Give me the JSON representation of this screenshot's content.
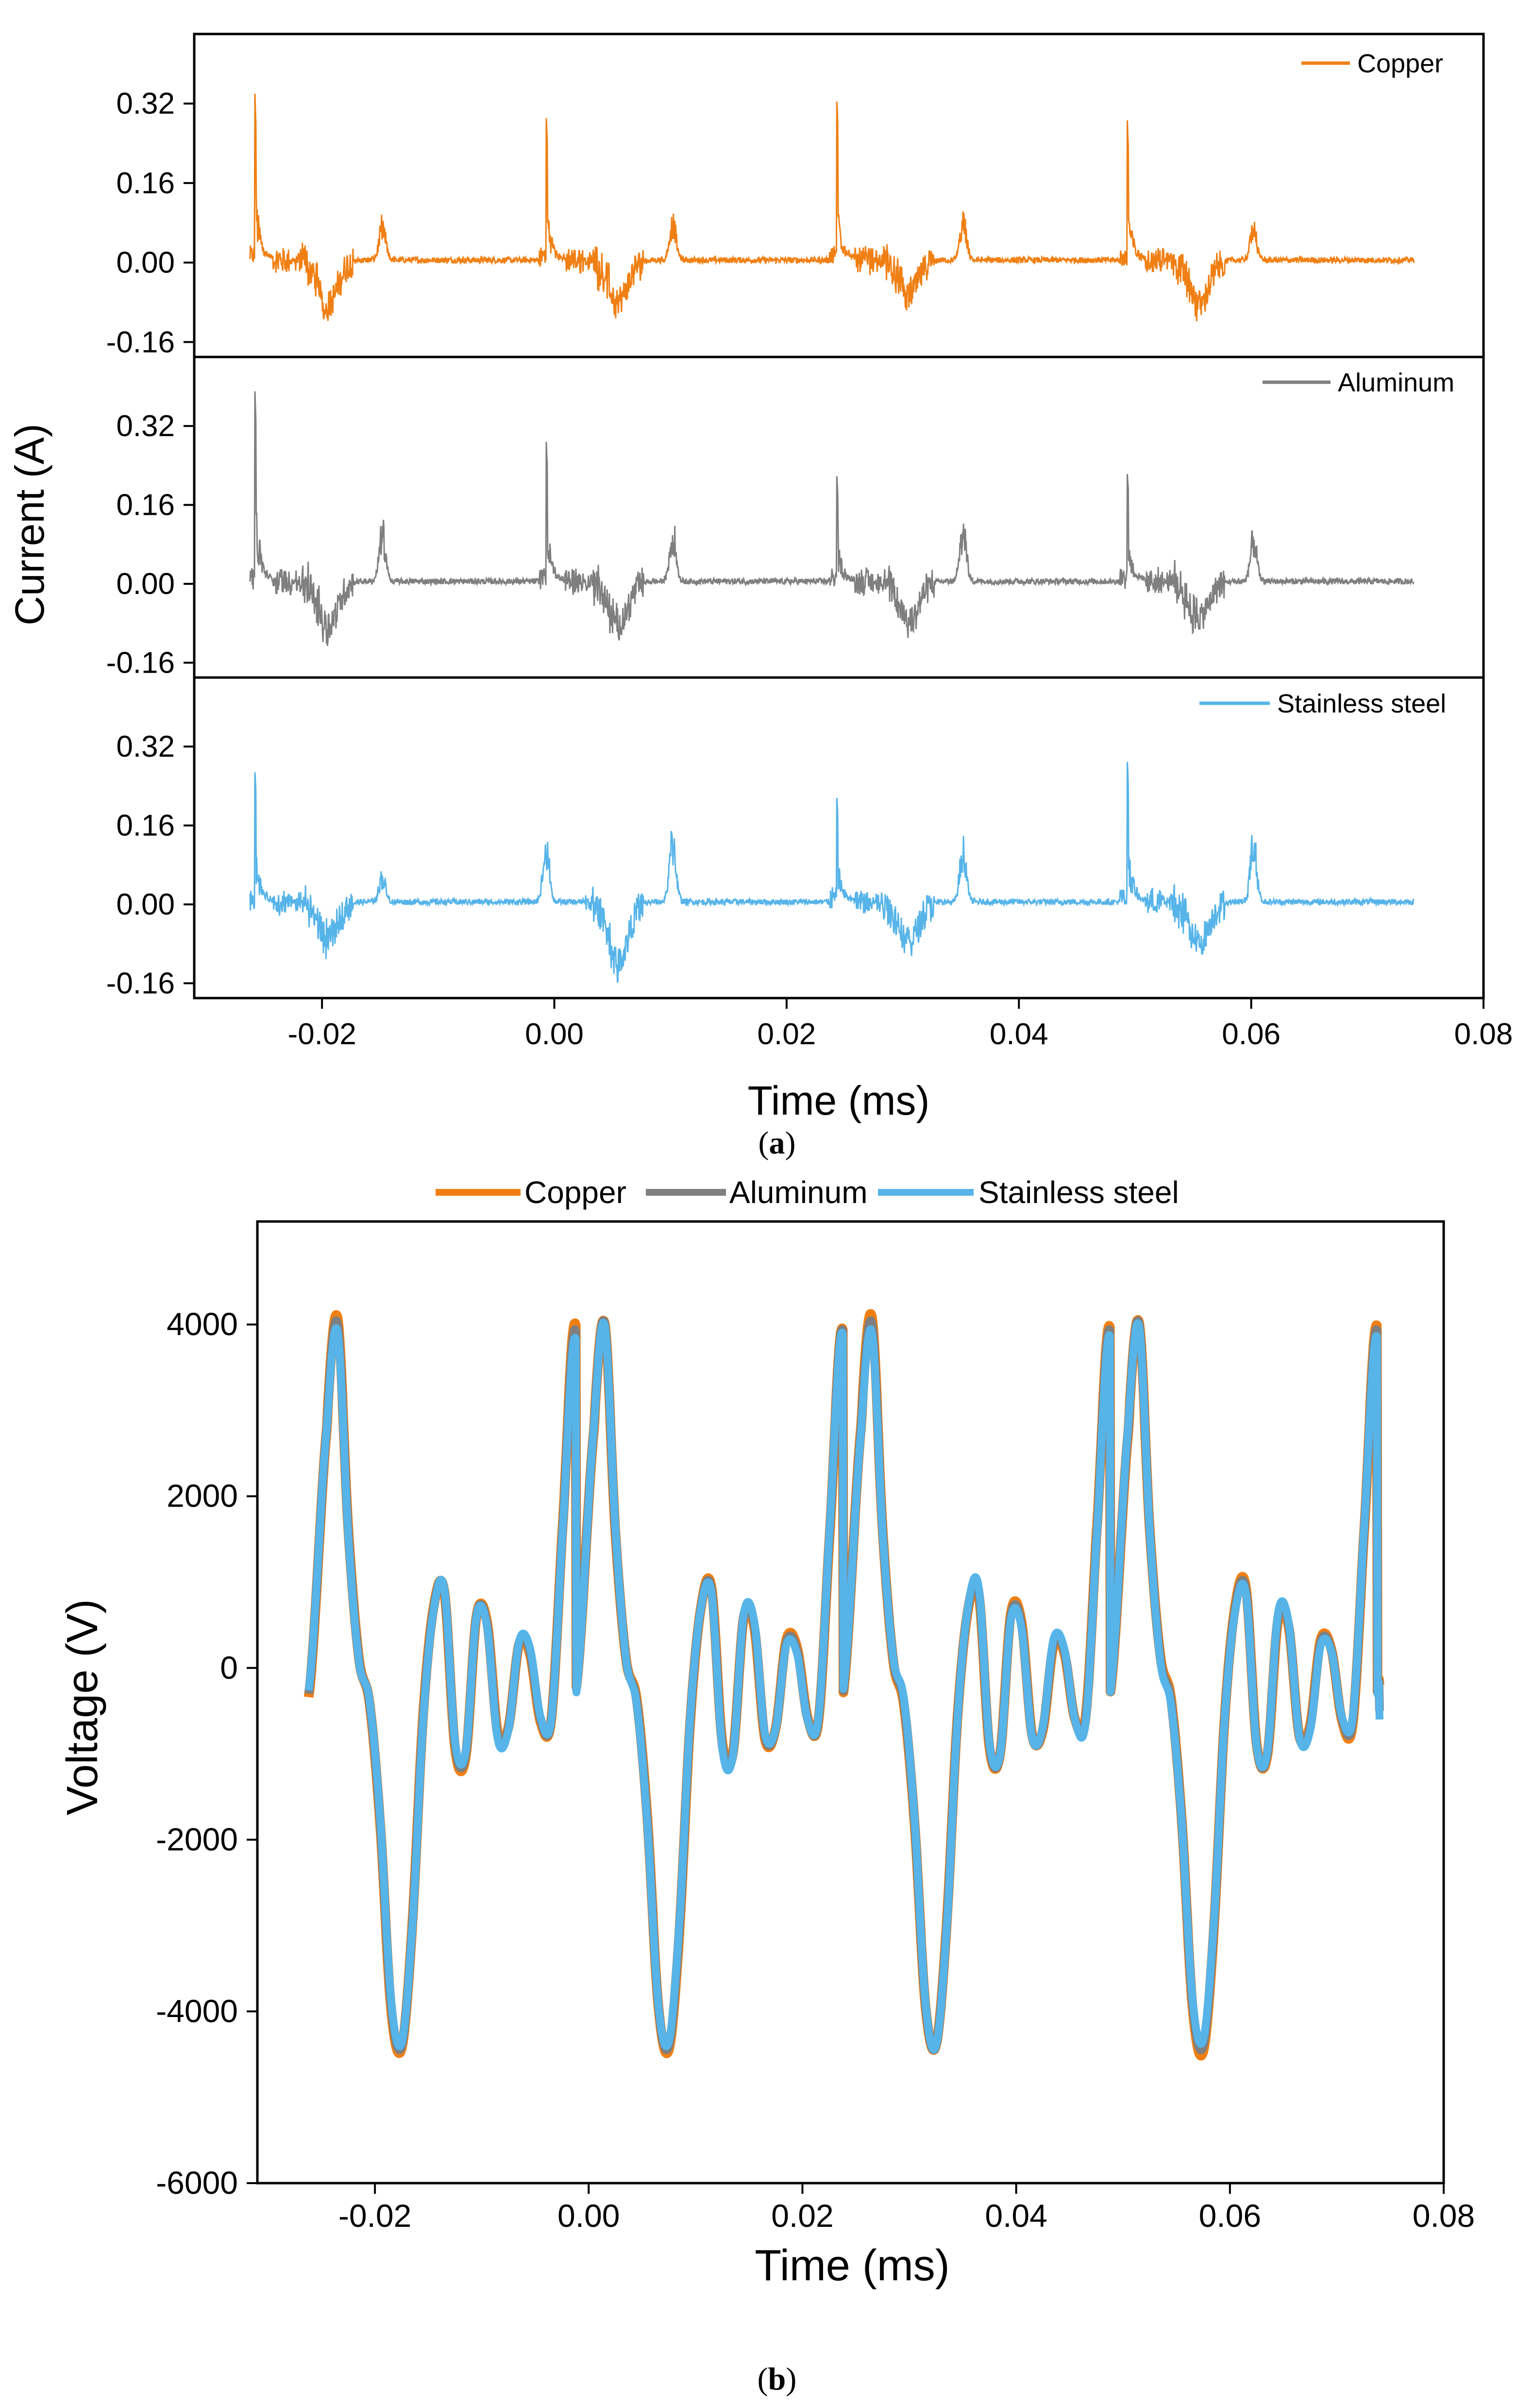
{
  "chart_data": [
    {
      "type": "line",
      "panel": "a",
      "caption_letter": "a",
      "xlabel": "Time (ms)",
      "ylabel": "Current (A)",
      "xlim": [
        -0.031,
        0.08
      ],
      "ylim": [
        -0.19,
        0.46
      ],
      "x_ticks": [
        -0.02,
        0.0,
        0.02,
        0.04,
        0.06,
        0.08
      ],
      "x_tick_labels": [
        "-0.02",
        "0.00",
        "0.02",
        "0.04",
        "0.06",
        "0.08"
      ],
      "y_ticks": [
        -0.16,
        0.0,
        0.16,
        0.32
      ],
      "y_tick_labels": [
        "-0.16",
        "0.00",
        "0.16",
        "0.32"
      ],
      "period_ms": 0.025,
      "x_range": [
        -0.0262,
        0.074
      ],
      "series": [
        {
          "name": "Copper",
          "color": "#F07F13",
          "legend_position": "top-right",
          "features": [
            {
              "t": -0.0258,
              "value": 0.35
            },
            {
              "t": -0.0007,
              "value": 0.29
            },
            {
              "t": 0.0243,
              "value": 0.34
            },
            {
              "t": 0.0493,
              "value": 0.3
            },
            {
              "t": -0.0195,
              "value": -0.12
            },
            {
              "t": 0.0055,
              "value": -0.11
            },
            {
              "t": 0.0305,
              "value": -0.09
            },
            {
              "t": 0.0555,
              "value": -0.12
            },
            {
              "t": -0.0148,
              "value": 0.09
            },
            {
              "t": 0.0102,
              "value": 0.1
            },
            {
              "t": 0.0352,
              "value": 0.1
            },
            {
              "t": 0.0602,
              "value": 0.09
            }
          ],
          "baseline": 0.005
        },
        {
          "name": "Aluminum",
          "color": "#7F7F7F",
          "legend_position": "top-right",
          "features": [
            {
              "t": -0.0258,
              "value": 0.41
            },
            {
              "t": -0.0007,
              "value": 0.29
            },
            {
              "t": 0.0243,
              "value": 0.22
            },
            {
              "t": 0.0493,
              "value": 0.24
            },
            {
              "t": -0.0195,
              "value": -0.12
            },
            {
              "t": 0.0055,
              "value": -0.12
            },
            {
              "t": 0.0305,
              "value": -0.11
            },
            {
              "t": 0.0555,
              "value": -0.1
            },
            {
              "t": -0.0148,
              "value": 0.13
            },
            {
              "t": 0.0102,
              "value": 0.13
            },
            {
              "t": 0.0352,
              "value": 0.14
            },
            {
              "t": 0.0602,
              "value": 0.11
            }
          ],
          "baseline": 0.005
        },
        {
          "name": "Stainless steel",
          "color": "#56B4E9",
          "legend_position": "top-right",
          "features": [
            {
              "t": -0.0258,
              "value": 0.28
            },
            {
              "t": -0.0007,
              "value": 0.14
            },
            {
              "t": 0.0243,
              "value": 0.22
            },
            {
              "t": 0.0493,
              "value": 0.31
            },
            {
              "t": -0.0195,
              "value": -0.1
            },
            {
              "t": 0.0055,
              "value": -0.16
            },
            {
              "t": 0.0305,
              "value": -0.11
            },
            {
              "t": 0.0555,
              "value": -0.11
            },
            {
              "t": -0.0148,
              "value": 0.07
            },
            {
              "t": 0.0102,
              "value": 0.17
            },
            {
              "t": 0.0352,
              "value": 0.14
            },
            {
              "t": 0.0602,
              "value": 0.16
            }
          ],
          "baseline": 0.005
        }
      ]
    },
    {
      "type": "line",
      "panel": "b",
      "caption_letter": "b",
      "xlabel": "Time (ms)",
      "ylabel": "Voltage (V)",
      "xlim": [
        -0.031,
        0.08
      ],
      "ylim": [
        -6000,
        5200
      ],
      "x_ticks": [
        -0.02,
        0.0,
        0.02,
        0.04,
        0.06,
        0.08
      ],
      "x_tick_labels": [
        "-0.02",
        "0.00",
        "0.02",
        "0.04",
        "0.06",
        "0.08"
      ],
      "y_ticks": [
        -6000,
        -4000,
        -2000,
        0,
        2000,
        4000
      ],
      "y_tick_labels": [
        "-6000",
        "-4000",
        "-2000",
        "0",
        "2000",
        "4000"
      ],
      "legend_position": "top-center",
      "period_ms": 0.025,
      "x_range": [
        -0.0262,
        0.074
      ],
      "waveform_one_period": {
        "t_offset": [
          -0.0262,
          -0.0245,
          -0.0235,
          -0.0225,
          -0.0215,
          -0.0205,
          -0.0195,
          -0.0185,
          -0.0175,
          -0.0165,
          -0.0155,
          -0.0145,
          -0.0135,
          -0.0125,
          -0.0115,
          -0.0105,
          -0.0095,
          -0.0085,
          -0.0075,
          -0.0065,
          -0.0055,
          -0.0045,
          -0.0035,
          -0.0025,
          -0.0012
        ],
        "value": [
          -300,
          2800,
          4000,
          1600,
          100,
          -400,
          -1800,
          -3900,
          -4400,
          -3000,
          -600,
          700,
          900,
          -900,
          -1000,
          600,
          500,
          -800,
          -700,
          300,
          200,
          -600,
          -600,
          1500,
          3900
        ]
      },
      "series": [
        {
          "name": "Copper",
          "color": "#F07F13",
          "peak": 4100,
          "trough": -4480,
          "end_value": -200
        },
        {
          "name": "Aluminum",
          "color": "#7F7F7F",
          "peak": 4060,
          "trough": -4450,
          "end_value": -500
        },
        {
          "name": "Stainless steel",
          "color": "#56B4E9",
          "peak": 4000,
          "trough": -4420,
          "end_value": -600
        }
      ]
    }
  ]
}
